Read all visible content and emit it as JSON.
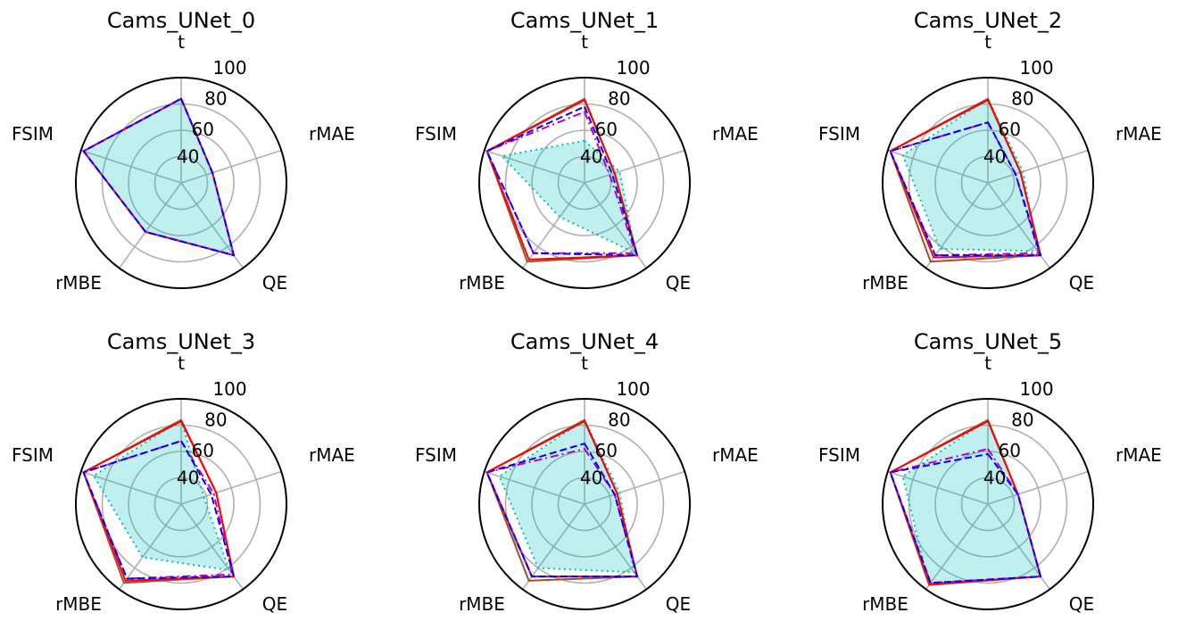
{
  "chart_data": [
    {
      "type": "radar",
      "title": "Cams_UNet_0",
      "axes": [
        "t",
        "rMAE",
        "QE",
        "rMBE",
        "FSIM"
      ],
      "rticks": [
        40,
        60,
        80,
        100
      ],
      "rlim": [
        20,
        100
      ],
      "grid": true,
      "series": [
        {
          "color": "#00bfbf",
          "style": "dotted",
          "fill": true,
          "values": [
            84,
            45,
            88,
            66,
            98
          ]
        },
        {
          "color": "#a0522d",
          "style": "solid",
          "fill": false,
          "values": [
            84,
            45,
            88,
            66,
            98
          ]
        },
        {
          "color": "#ff0000",
          "style": "solid",
          "fill": false,
          "values": [
            84,
            45,
            88,
            66,
            98
          ]
        },
        {
          "color": "#bf00bf",
          "style": "dashdot",
          "fill": false,
          "values": [
            84,
            45,
            88,
            66,
            98
          ]
        },
        {
          "color": "#0000ff",
          "style": "dashed",
          "fill": false,
          "values": [
            84,
            45,
            88,
            66,
            98
          ]
        }
      ]
    },
    {
      "type": "radar",
      "title": "Cams_UNet_1",
      "axes": [
        "t",
        "rMAE",
        "QE",
        "rMBE",
        "FSIM"
      ],
      "rticks": [
        40,
        60,
        80,
        100
      ],
      "rlim": [
        20,
        100
      ],
      "grid": true,
      "series": [
        {
          "color": "#00bfbf",
          "style": "dotted",
          "fill": true,
          "values": [
            52,
            48,
            86,
            52,
            86
          ]
        },
        {
          "color": "#a0522d",
          "style": "solid",
          "fill": false,
          "values": [
            84,
            44,
            88,
            94,
            98
          ]
        },
        {
          "color": "#ff0000",
          "style": "solid",
          "fill": false,
          "values": [
            83,
            44,
            88,
            92,
            98
          ]
        },
        {
          "color": "#bf00bf",
          "style": "dashdot",
          "fill": false,
          "values": [
            74,
            40,
            86,
            86,
            98
          ]
        },
        {
          "color": "#0000ff",
          "style": "dashed",
          "fill": false,
          "values": [
            78,
            42,
            88,
            86,
            98
          ]
        }
      ]
    },
    {
      "type": "radar",
      "title": "Cams_UNet_2",
      "axes": [
        "t",
        "rMAE",
        "QE",
        "rMBE",
        "FSIM"
      ],
      "rticks": [
        40,
        60,
        80,
        100
      ],
      "rlim": [
        20,
        100
      ],
      "grid": true,
      "series": [
        {
          "color": "#00bfbf",
          "style": "dotted",
          "fill": true,
          "values": [
            84,
            48,
            84,
            82,
            88
          ]
        },
        {
          "color": "#a0522d",
          "style": "solid",
          "fill": false,
          "values": [
            84,
            46,
            88,
            94,
            98
          ]
        },
        {
          "color": "#ff0000",
          "style": "solid",
          "fill": false,
          "values": [
            83,
            46,
            88,
            90,
            98
          ]
        },
        {
          "color": "#bf00bf",
          "style": "dashdot",
          "fill": false,
          "values": [
            66,
            42,
            86,
            88,
            98
          ]
        },
        {
          "color": "#0000ff",
          "style": "dashed",
          "fill": false,
          "values": [
            66,
            42,
            88,
            88,
            98
          ]
        }
      ]
    },
    {
      "type": "radar",
      "title": "Cams_UNet_3",
      "axes": [
        "t",
        "rMAE",
        "QE",
        "rMBE",
        "FSIM"
      ],
      "rticks": [
        40,
        60,
        80,
        100
      ],
      "rlim": [
        20,
        100
      ],
      "grid": true,
      "series": [
        {
          "color": "#00bfbf",
          "style": "dotted",
          "fill": true,
          "values": [
            84,
            38,
            82,
            70,
            90
          ]
        },
        {
          "color": "#a0522d",
          "style": "solid",
          "fill": false,
          "values": [
            84,
            48,
            88,
            94,
            98
          ]
        },
        {
          "color": "#ff0000",
          "style": "solid",
          "fill": false,
          "values": [
            83,
            48,
            88,
            92,
            98
          ]
        },
        {
          "color": "#bf00bf",
          "style": "dashdot",
          "fill": false,
          "values": [
            68,
            46,
            86,
            90,
            98
          ]
        },
        {
          "color": "#0000ff",
          "style": "dashed",
          "fill": false,
          "values": [
            68,
            44,
            88,
            90,
            98
          ]
        }
      ]
    },
    {
      "type": "radar",
      "title": "Cams_UNet_4",
      "axes": [
        "t",
        "rMAE",
        "QE",
        "rMBE",
        "FSIM"
      ],
      "rticks": [
        40,
        60,
        80,
        100
      ],
      "rlim": [
        20,
        100
      ],
      "grid": true,
      "series": [
        {
          "color": "#00bfbf",
          "style": "dotted",
          "fill": true,
          "values": [
            84,
            48,
            84,
            80,
            88
          ]
        },
        {
          "color": "#a0522d",
          "style": "solid",
          "fill": false,
          "values": [
            84,
            46,
            88,
            92,
            98
          ]
        },
        {
          "color": "#ff0000",
          "style": "solid",
          "fill": false,
          "values": [
            83,
            46,
            88,
            88,
            98
          ]
        },
        {
          "color": "#bf00bf",
          "style": "dashdot",
          "fill": false,
          "values": [
            62,
            44,
            88,
            88,
            98
          ]
        },
        {
          "color": "#0000ff",
          "style": "dashed",
          "fill": false,
          "values": [
            66,
            44,
            88,
            88,
            98
          ]
        }
      ]
    },
    {
      "type": "radar",
      "title": "Cams_UNet_5",
      "axes": [
        "t",
        "rMAE",
        "QE",
        "rMBE",
        "FSIM"
      ],
      "rticks": [
        40,
        60,
        80,
        100
      ],
      "rlim": [
        20,
        100
      ],
      "grid": true,
      "series": [
        {
          "color": "#00bfbf",
          "style": "dotted",
          "fill": true,
          "values": [
            84,
            44,
            88,
            96,
            88
          ]
        },
        {
          "color": "#a0522d",
          "style": "solid",
          "fill": false,
          "values": [
            84,
            44,
            88,
            96,
            98
          ]
        },
        {
          "color": "#ff0000",
          "style": "solid",
          "fill": false,
          "values": [
            83,
            44,
            88,
            95,
            98
          ]
        },
        {
          "color": "#bf00bf",
          "style": "dashdot",
          "fill": false,
          "values": [
            62,
            44,
            88,
            94,
            98
          ]
        },
        {
          "color": "#0000ff",
          "style": "dashed",
          "fill": false,
          "values": [
            58,
            44,
            88,
            94,
            98
          ]
        }
      ]
    }
  ]
}
